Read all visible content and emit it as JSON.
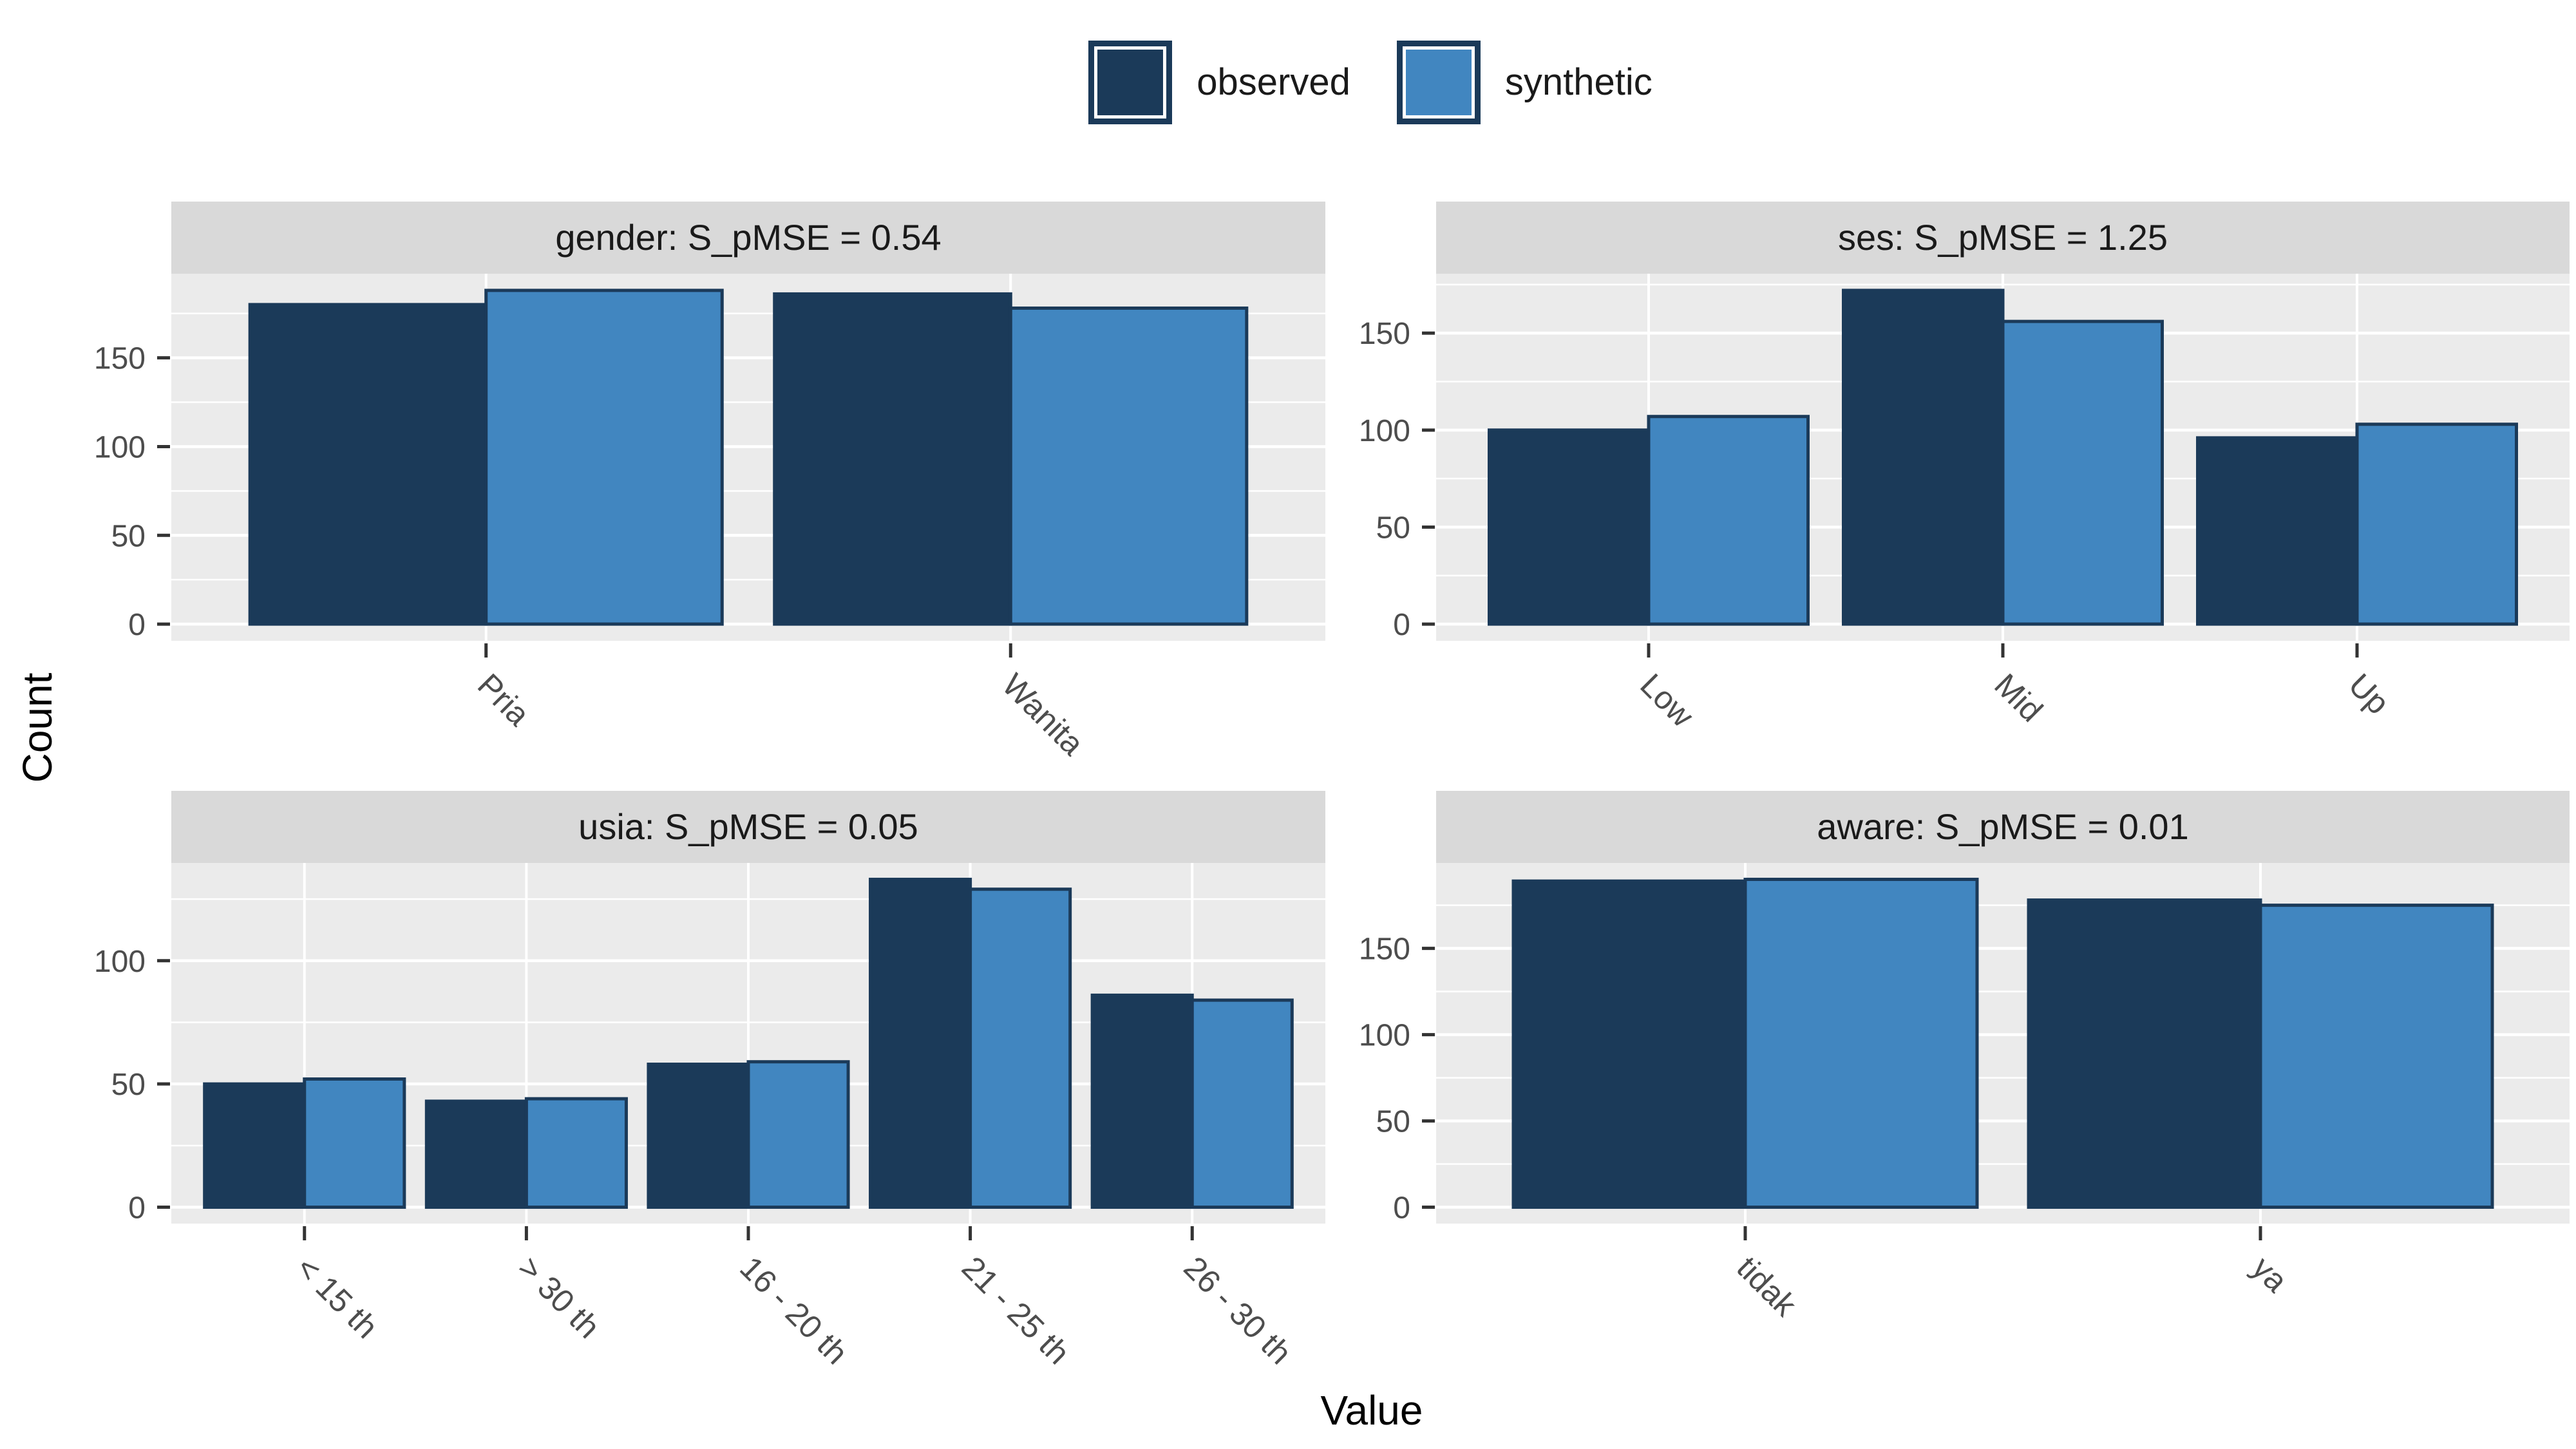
{
  "figure": {
    "y_axis_title": "Count",
    "x_axis_title": "Value",
    "background_color": "#FFFFFF"
  },
  "legend": {
    "items": [
      {
        "label": "observed",
        "color": "#1B3A59"
      },
      {
        "label": "synthetic",
        "color": "#4186C0"
      }
    ]
  },
  "style": {
    "panel_bg": "#EBEBEB",
    "strip_bg": "#D9D9D9",
    "grid_color": "#FFFFFF",
    "bar_outline": "#1B3A59",
    "tick_mark_color": "#333333",
    "tick_label_color": "#4D4D4D",
    "title_text_color": "#1A1A1A"
  },
  "chart_data": [
    {
      "type": "bar",
      "facet_title": "gender: S_pMSE = 0.54",
      "variable": "gender",
      "s_pmse": 0.54,
      "categories": [
        "Pria",
        "Wanita"
      ],
      "series": [
        {
          "name": "observed",
          "values": [
            180,
            186
          ]
        },
        {
          "name": "synthetic",
          "values": [
            188,
            178
          ]
        }
      ],
      "y_ticks": [
        0,
        50,
        100,
        150
      ],
      "ylim_expanded": [
        -9.4,
        197.4
      ],
      "legend_position": "top",
      "grid": true
    },
    {
      "type": "bar",
      "facet_title": "ses: S_pMSE = 1.25",
      "variable": "ses",
      "s_pmse": 1.25,
      "categories": [
        "Low",
        "Mid",
        "Up"
      ],
      "series": [
        {
          "name": "observed",
          "values": [
            100,
            172,
            96
          ]
        },
        {
          "name": "synthetic",
          "values": [
            107,
            156,
            103
          ]
        }
      ],
      "y_ticks": [
        0,
        50,
        100,
        150
      ],
      "ylim_expanded": [
        -8.6,
        180.6
      ],
      "legend_position": "top",
      "grid": true
    },
    {
      "type": "bar",
      "facet_title": "usia: S_pMSE = 0.05",
      "variable": "usia",
      "s_pmse": 0.05,
      "categories": [
        "< 15 th",
        "> 30 th",
        "16 - 20 th",
        "21 - 25 th",
        "26 - 30 th"
      ],
      "series": [
        {
          "name": "observed",
          "values": [
            50,
            43,
            58,
            133,
            86
          ]
        },
        {
          "name": "synthetic",
          "values": [
            52,
            44,
            59,
            129,
            84
          ]
        }
      ],
      "y_ticks": [
        0,
        50,
        100
      ],
      "ylim_expanded": [
        -6.65,
        139.65
      ],
      "legend_position": "top",
      "grid": true
    },
    {
      "type": "bar",
      "facet_title": "aware: S_pMSE = 0.01",
      "variable": "aware",
      "s_pmse": 0.01,
      "categories": [
        "tidak",
        "ya"
      ],
      "series": [
        {
          "name": "observed",
          "values": [
            189,
            178
          ]
        },
        {
          "name": "synthetic",
          "values": [
            190,
            175
          ]
        }
      ],
      "y_ticks": [
        0,
        50,
        100,
        150
      ],
      "ylim_expanded": [
        -9.5,
        199.5
      ],
      "legend_position": "top",
      "grid": true
    }
  ]
}
